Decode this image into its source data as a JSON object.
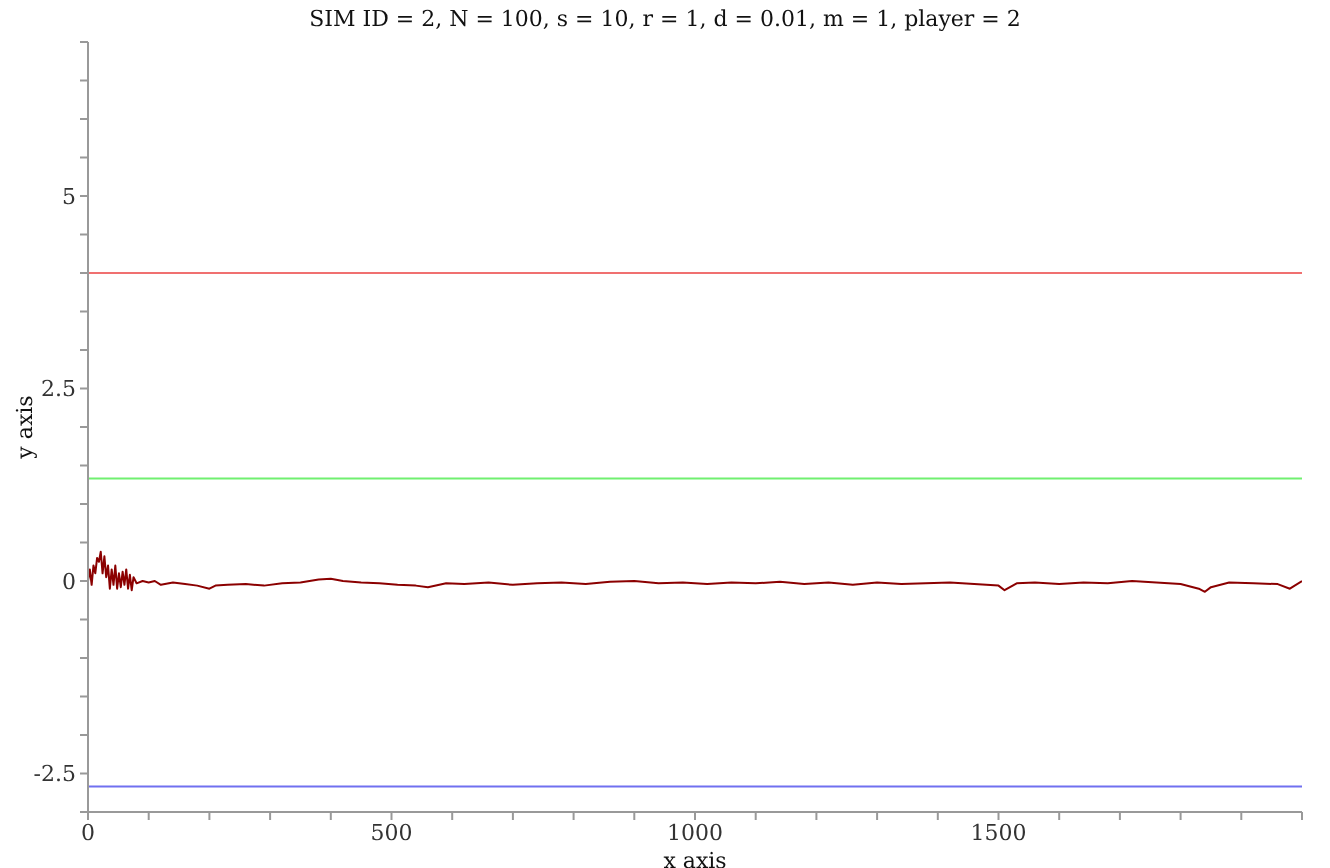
{
  "chart_data": {
    "type": "line",
    "title": "SIM ID = 2, N = 100, s = 10, r = 1, d = 0.01, m = 1, player = 2",
    "xlabel": "x axis",
    "ylabel": "y axis",
    "x": [
      0,
      3,
      6,
      9,
      12,
      15,
      18,
      21,
      24,
      27,
      30,
      33,
      36,
      39,
      42,
      45,
      48,
      51,
      54,
      57,
      60,
      63,
      66,
      69,
      72,
      75,
      80,
      90,
      100,
      110,
      120,
      140,
      160,
      180,
      200,
      210,
      230,
      260,
      290,
      320,
      350,
      380,
      400,
      420,
      450,
      480,
      510,
      540,
      560,
      590,
      620,
      660,
      700,
      740,
      780,
      820,
      860,
      900,
      940,
      980,
      1020,
      1060,
      1100,
      1140,
      1180,
      1220,
      1260,
      1300,
      1340,
      1380,
      1420,
      1460,
      1500,
      1510,
      1530,
      1560,
      1600,
      1640,
      1680,
      1720,
      1760,
      1800,
      1830,
      1840,
      1850,
      1880,
      1920,
      1960,
      1980,
      2000
    ],
    "series": [
      {
        "color": "#8b0000",
        "values": [
          0.0,
          0.15,
          -0.05,
          0.2,
          0.1,
          0.3,
          0.25,
          0.38,
          0.1,
          0.32,
          0.05,
          0.2,
          -0.1,
          0.15,
          -0.05,
          0.2,
          -0.1,
          0.1,
          -0.08,
          0.12,
          -0.05,
          0.15,
          -0.1,
          0.08,
          -0.12,
          0.05,
          -0.03,
          0.0,
          -0.02,
          0.0,
          -0.05,
          -0.02,
          -0.04,
          -0.06,
          -0.1,
          -0.06,
          -0.05,
          -0.04,
          -0.06,
          -0.03,
          -0.02,
          0.02,
          0.03,
          0.0,
          -0.02,
          -0.03,
          -0.05,
          -0.06,
          -0.08,
          -0.03,
          -0.04,
          -0.02,
          -0.05,
          -0.03,
          -0.02,
          -0.04,
          -0.01,
          0.0,
          -0.03,
          -0.02,
          -0.04,
          -0.02,
          -0.03,
          -0.01,
          -0.04,
          -0.02,
          -0.05,
          -0.02,
          -0.04,
          -0.03,
          -0.02,
          -0.04,
          -0.06,
          -0.12,
          -0.03,
          -0.02,
          -0.04,
          -0.02,
          -0.03,
          0.0,
          -0.02,
          -0.04,
          -0.1,
          -0.14,
          -0.08,
          -0.02,
          -0.03,
          -0.04,
          -0.1,
          0.0
        ]
      }
    ],
    "ref_lines": [
      {
        "axis": "y",
        "value": 4,
        "color": "#f07070"
      },
      {
        "axis": "y",
        "value": 1.33,
        "color": "#70f070"
      },
      {
        "axis": "y",
        "value": -2.67,
        "color": "#7070f0"
      }
    ],
    "xlim": [
      0,
      2000
    ],
    "xticks": [
      0,
      {
        "value": 100,
        "label": null
      },
      {
        "value": 200,
        "label": null
      },
      {
        "value": 300,
        "label": null
      },
      {
        "value": 400,
        "label": null
      },
      500,
      {
        "value": 600,
        "label": null
      },
      {
        "value": 700,
        "label": null
      },
      {
        "value": 800,
        "label": null
      },
      {
        "value": 900,
        "label": null
      },
      1000,
      {
        "value": 1100,
        "label": null
      },
      {
        "value": 1200,
        "label": null
      },
      {
        "value": 1300,
        "label": null
      },
      {
        "value": 1400,
        "label": null
      },
      1500,
      {
        "value": 1600,
        "label": null
      },
      {
        "value": 1700,
        "label": null
      },
      {
        "value": 1800,
        "label": null
      },
      {
        "value": 1900,
        "label": null
      },
      {
        "value": 2000,
        "label": null
      }
    ],
    "ylim": [
      -3,
      7
    ],
    "yticks": [
      {
        "value": -3,
        "label": null
      },
      -2.5,
      {
        "value": -2,
        "label": null
      },
      {
        "value": -1.5,
        "label": null
      },
      {
        "value": -1,
        "label": null
      },
      {
        "value": -0.5,
        "label": null
      },
      0,
      {
        "value": 0.5,
        "label": null
      },
      {
        "value": 1,
        "label": null
      },
      {
        "value": 1.5,
        "label": null
      },
      {
        "value": 2,
        "label": null
      },
      2.5,
      {
        "value": 3,
        "label": null
      },
      {
        "value": 3.5,
        "label": null
      },
      {
        "value": 4,
        "label": null
      },
      {
        "value": 4.5,
        "label": null
      },
      5,
      {
        "value": 5.5,
        "label": null
      },
      {
        "value": 6,
        "label": null
      },
      {
        "value": 6.5,
        "label": null
      },
      {
        "value": 7,
        "label": null
      }
    ],
    "grid": false,
    "legend": false,
    "marker": "none",
    "line_style": "solid"
  }
}
